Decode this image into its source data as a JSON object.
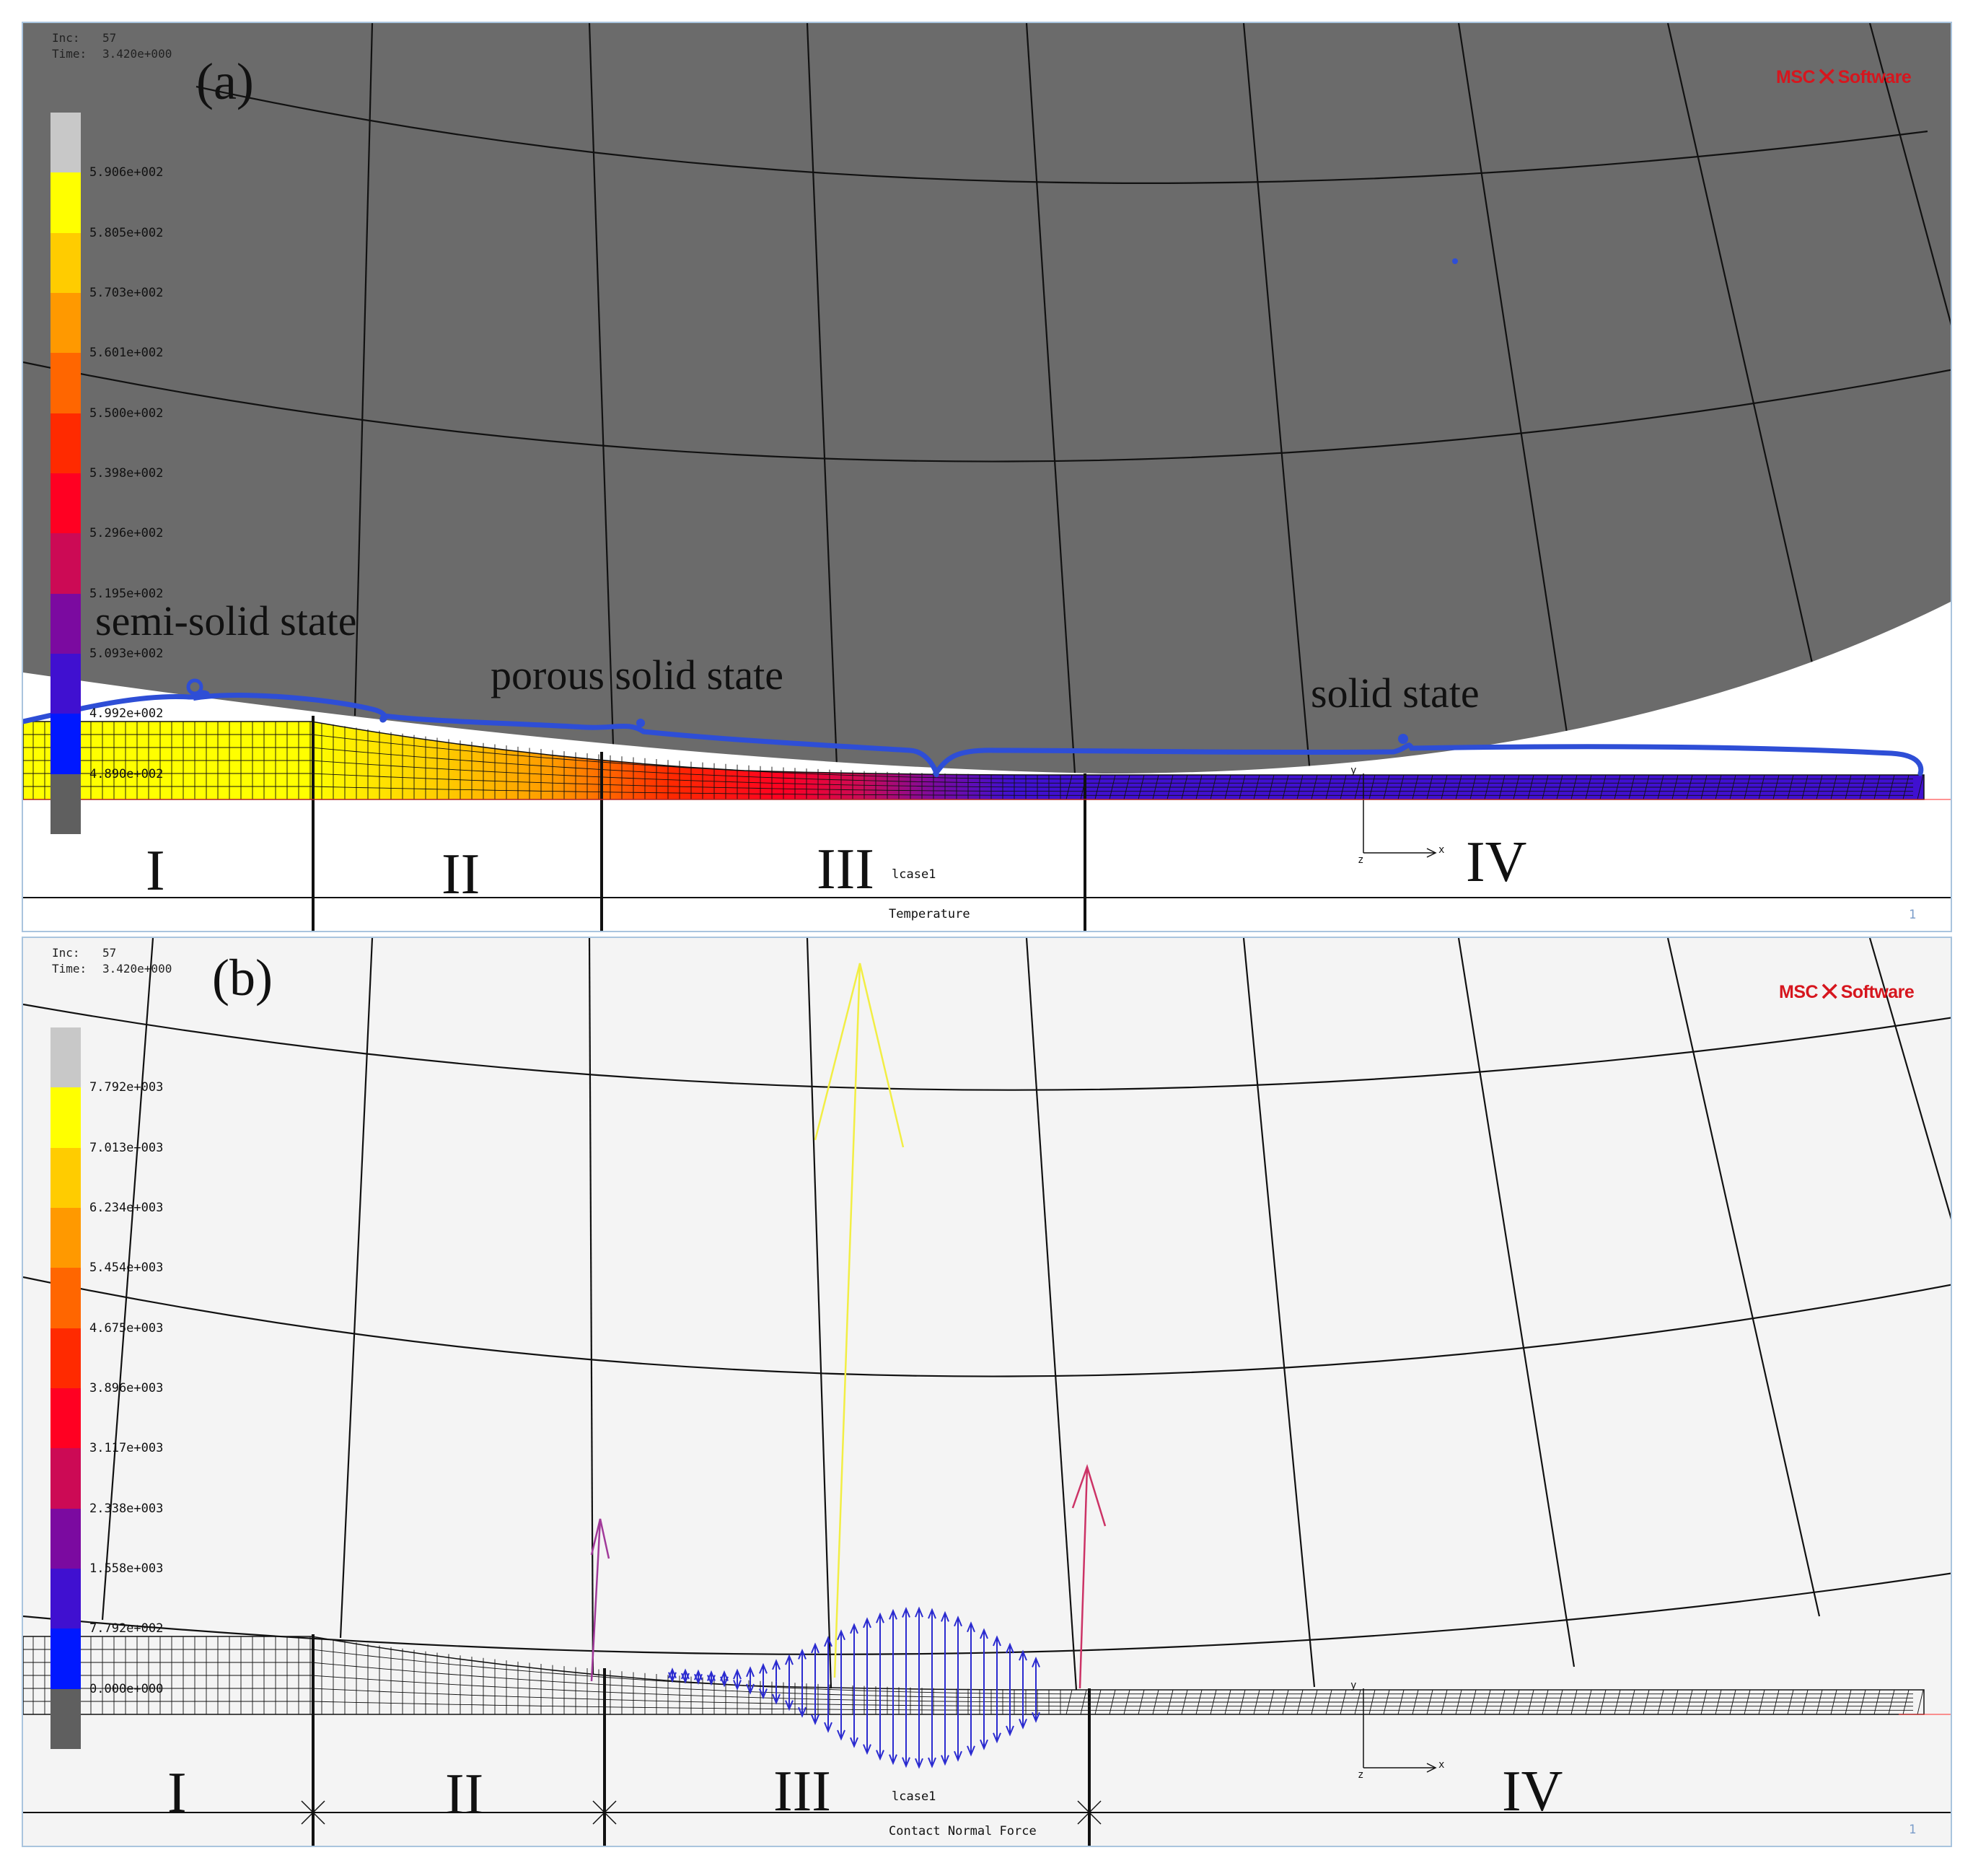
{
  "panel_a": {
    "label": "(a)",
    "inc_key": "Inc:",
    "inc_value": "57",
    "time_key": "Time:",
    "time_value": "3.420e+000",
    "logo": {
      "left": "MSC",
      "right": "Software"
    },
    "legend_values": [
      "5.906e+002",
      "5.805e+002",
      "5.703e+002",
      "5.601e+002",
      "5.500e+002",
      "5.398e+002",
      "5.296e+002",
      "5.195e+002",
      "5.093e+002",
      "4.992e+002",
      "4.890e+002"
    ],
    "state_labels": {
      "semi": "semi-solid state",
      "porous": "porous solid state",
      "solid": "solid state"
    },
    "zones": [
      "I",
      "II",
      "III",
      "IV"
    ],
    "case": "lcase1",
    "result": "Temperature",
    "frame_number": "1",
    "axis_x": "x",
    "axis_y": "y",
    "axis_z": "z"
  },
  "panel_b": {
    "label": "(b)",
    "inc_key": "Inc:",
    "inc_value": "57",
    "time_key": "Time:",
    "time_value": "3.420e+000",
    "logo": {
      "left": "MSC",
      "right": "Software"
    },
    "legend_values": [
      "7.792e+003",
      "7.013e+003",
      "6.234e+003",
      "5.454e+003",
      "4.675e+003",
      "3.896e+003",
      "3.117e+003",
      "2.338e+003",
      "1.558e+003",
      "7.792e+002",
      "0.000e+000"
    ],
    "zones": [
      "I",
      "II",
      "III",
      "IV"
    ],
    "case": "lcase1",
    "result": "Contact Normal Force",
    "frame_number": "1",
    "axis_x": "x",
    "axis_y": "y",
    "axis_z": "z"
  },
  "colorbar_colors": [
    "#c8c8c8",
    "#ffff00",
    "#ffcc00",
    "#ff9900",
    "#ff6600",
    "#ff2a00",
    "#ff0022",
    "#cc0a55",
    "#7b0aa0",
    "#4010d0",
    "#0018ff",
    "#5f5f5f"
  ],
  "annotation_color": "#2e4ed6",
  "temperature_gradient": [
    "#ffff00",
    "#ffcc00",
    "#ff9900",
    "#ff6600",
    "#ff2a00",
    "#ff0022",
    "#cc0a55",
    "#7b0aa0",
    "#4010d0"
  ]
}
